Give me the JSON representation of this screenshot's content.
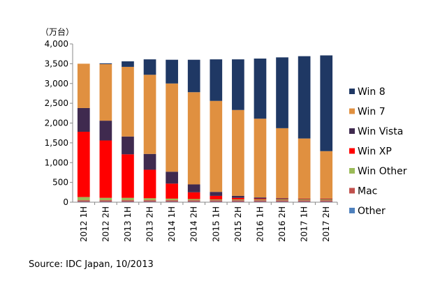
{
  "chart_data": {
    "type": "bar",
    "stacked": true,
    "unit_label": "（万台）",
    "categories": [
      "2012 1H",
      "2012 2H",
      "2013 1H",
      "2013 2H",
      "2014 1H",
      "2014 2H",
      "2015 1H",
      "2015 2H",
      "2016 1H",
      "2016 2H",
      "2017 1H",
      "2017 2H"
    ],
    "ylim": [
      0,
      4000
    ],
    "yticks": [
      "0",
      "500",
      "1,000",
      "1,500",
      "2,000",
      "2,500",
      "3,000",
      "3,500",
      "4,000"
    ],
    "grid": false,
    "legend_position": "right",
    "series": [
      {
        "name": "Other",
        "color": "#4F81BD",
        "values": [
          10,
          10,
          10,
          10,
          10,
          10,
          10,
          10,
          10,
          10,
          10,
          10
        ]
      },
      {
        "name": "Mac",
        "color": "#C0504D",
        "values": [
          40,
          40,
          40,
          40,
          40,
          40,
          40,
          40,
          40,
          40,
          40,
          40
        ]
      },
      {
        "name": "Win Other",
        "color": "#9BBB59",
        "values": [
          80,
          60,
          60,
          50,
          40,
          30,
          20,
          20,
          20,
          20,
          20,
          20
        ]
      },
      {
        "name": "Win XP",
        "color": "#FF0000",
        "values": [
          1650,
          1450,
          1100,
          720,
          380,
          170,
          90,
          40,
          20,
          10,
          10,
          10
        ]
      },
      {
        "name": "Win Vista",
        "color": "#3F2A4F",
        "values": [
          600,
          500,
          450,
          400,
          300,
          200,
          100,
          50,
          30,
          20,
          10,
          10
        ]
      },
      {
        "name": "Win 7",
        "color": "#E09040",
        "values": [
          1120,
          1430,
          1760,
          2000,
          2230,
          2330,
          2300,
          2170,
          1990,
          1770,
          1520,
          1200
        ]
      },
      {
        "name": "Win 8",
        "color": "#1F3864",
        "values": [
          0,
          20,
          140,
          390,
          600,
          820,
          1050,
          1280,
          1520,
          1790,
          2080,
          2420
        ]
      }
    ],
    "legend_order": [
      "Win 8",
      "Win 7",
      "Win Vista",
      "Win XP",
      "Win Other",
      "Mac",
      "Other"
    ]
  },
  "source": "Source: IDC Japan, 10/2013"
}
